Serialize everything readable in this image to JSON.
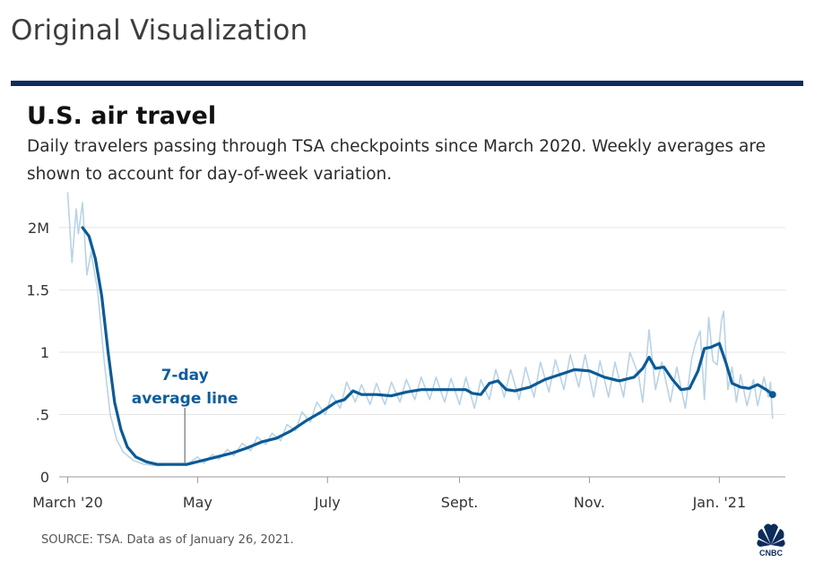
{
  "header": {
    "label": "Original Visualization"
  },
  "chart_data": {
    "type": "line",
    "title": "U.S. air travel",
    "subtitle": "Daily travelers passing through TSA checkpoints since March 2020. Weekly averages are shown to account for day-of-week variation.",
    "source": "SOURCE: TSA. Data as of January 26, 2021.",
    "logo_text": "CNBC",
    "y_ticks": [
      {
        "value": 0,
        "label": "0"
      },
      {
        "value": 0.5,
        "label": ".5"
      },
      {
        "value": 1.0,
        "label": "1"
      },
      {
        "value": 1.5,
        "label": "1.5"
      },
      {
        "value": 2.0,
        "label": "2M"
      }
    ],
    "x_ticks": [
      {
        "date": "2020-03-01",
        "label": "March '20"
      },
      {
        "date": "2020-05-01",
        "label": "May"
      },
      {
        "date": "2020-07-01",
        "label": "July"
      },
      {
        "date": "2020-09-01",
        "label": "Sept."
      },
      {
        "date": "2020-11-01",
        "label": "Nov."
      },
      {
        "date": "2021-01-01",
        "label": "Jan. '21"
      }
    ],
    "ylim": [
      0,
      2.1
    ],
    "xlim": [
      "2020-02-26",
      "2021-02-01"
    ],
    "grid": true,
    "annotation": {
      "lines": [
        "7-day",
        "average line"
      ],
      "date": "2020-04-25",
      "value": 0.1
    },
    "series": [
      {
        "style": "average",
        "color": "#0b5a96",
        "points": [
          [
            "2020-03-08",
            2.0
          ],
          [
            "2020-03-11",
            1.93
          ],
          [
            "2020-03-14",
            1.75
          ],
          [
            "2020-03-17",
            1.45
          ],
          [
            "2020-03-20",
            1.0
          ],
          [
            "2020-03-23",
            0.6
          ],
          [
            "2020-03-26",
            0.38
          ],
          [
            "2020-03-29",
            0.24
          ],
          [
            "2020-04-02",
            0.16
          ],
          [
            "2020-04-07",
            0.12
          ],
          [
            "2020-04-12",
            0.1
          ],
          [
            "2020-04-19",
            0.1
          ],
          [
            "2020-04-26",
            0.1
          ],
          [
            "2020-05-03",
            0.13
          ],
          [
            "2020-05-10",
            0.16
          ],
          [
            "2020-05-17",
            0.19
          ],
          [
            "2020-05-24",
            0.23
          ],
          [
            "2020-05-31",
            0.28
          ],
          [
            "2020-06-07",
            0.31
          ],
          [
            "2020-06-14",
            0.37
          ],
          [
            "2020-06-21",
            0.45
          ],
          [
            "2020-06-28",
            0.52
          ],
          [
            "2020-07-05",
            0.6
          ],
          [
            "2020-07-09",
            0.62
          ],
          [
            "2020-07-13",
            0.69
          ],
          [
            "2020-07-17",
            0.66
          ],
          [
            "2020-07-24",
            0.66
          ],
          [
            "2020-07-31",
            0.65
          ],
          [
            "2020-08-07",
            0.68
          ],
          [
            "2020-08-14",
            0.7
          ],
          [
            "2020-08-21",
            0.7
          ],
          [
            "2020-08-28",
            0.7
          ],
          [
            "2020-09-04",
            0.7
          ],
          [
            "2020-09-07",
            0.67
          ],
          [
            "2020-09-11",
            0.66
          ],
          [
            "2020-09-15",
            0.75
          ],
          [
            "2020-09-19",
            0.77
          ],
          [
            "2020-09-23",
            0.7
          ],
          [
            "2020-09-27",
            0.69
          ],
          [
            "2020-10-04",
            0.72
          ],
          [
            "2020-10-11",
            0.78
          ],
          [
            "2020-10-18",
            0.82
          ],
          [
            "2020-10-25",
            0.86
          ],
          [
            "2020-11-01",
            0.85
          ],
          [
            "2020-11-08",
            0.8
          ],
          [
            "2020-11-15",
            0.77
          ],
          [
            "2020-11-22",
            0.8
          ],
          [
            "2020-11-26",
            0.87
          ],
          [
            "2020-11-29",
            0.96
          ],
          [
            "2020-12-02",
            0.87
          ],
          [
            "2020-12-06",
            0.88
          ],
          [
            "2020-12-10",
            0.78
          ],
          [
            "2020-12-14",
            0.7
          ],
          [
            "2020-12-18",
            0.71
          ],
          [
            "2020-12-22",
            0.85
          ],
          [
            "2020-12-25",
            1.03
          ],
          [
            "2020-12-28",
            1.04
          ],
          [
            "2021-01-01",
            1.07
          ],
          [
            "2021-01-04",
            0.92
          ],
          [
            "2021-01-07",
            0.75
          ],
          [
            "2021-01-11",
            0.72
          ],
          [
            "2021-01-15",
            0.71
          ],
          [
            "2021-01-19",
            0.74
          ],
          [
            "2021-01-23",
            0.7
          ],
          [
            "2021-01-26",
            0.66
          ]
        ]
      },
      {
        "style": "daily",
        "color": "#b9d3e6",
        "points": [
          [
            "2020-03-01",
            2.28
          ],
          [
            "2020-03-03",
            1.72
          ],
          [
            "2020-03-05",
            2.15
          ],
          [
            "2020-03-06",
            1.95
          ],
          [
            "2020-03-08",
            2.2
          ],
          [
            "2020-03-10",
            1.62
          ],
          [
            "2020-03-12",
            1.8
          ],
          [
            "2020-03-15",
            1.5
          ],
          [
            "2020-03-18",
            0.95
          ],
          [
            "2020-03-21",
            0.5
          ],
          [
            "2020-03-24",
            0.3
          ],
          [
            "2020-03-27",
            0.2
          ],
          [
            "2020-04-01",
            0.13
          ],
          [
            "2020-04-06",
            0.1
          ],
          [
            "2020-04-12",
            0.09
          ],
          [
            "2020-04-20",
            0.1
          ],
          [
            "2020-04-27",
            0.11
          ],
          [
            "2020-05-01",
            0.16
          ],
          [
            "2020-05-04",
            0.11
          ],
          [
            "2020-05-08",
            0.18
          ],
          [
            "2020-05-11",
            0.14
          ],
          [
            "2020-05-15",
            0.22
          ],
          [
            "2020-05-18",
            0.17
          ],
          [
            "2020-05-22",
            0.27
          ],
          [
            "2020-05-26",
            0.21
          ],
          [
            "2020-05-29",
            0.32
          ],
          [
            "2020-06-02",
            0.26
          ],
          [
            "2020-06-05",
            0.35
          ],
          [
            "2020-06-09",
            0.29
          ],
          [
            "2020-06-12",
            0.42
          ],
          [
            "2020-06-16",
            0.37
          ],
          [
            "2020-06-19",
            0.52
          ],
          [
            "2020-06-23",
            0.44
          ],
          [
            "2020-06-26",
            0.6
          ],
          [
            "2020-06-30",
            0.5
          ],
          [
            "2020-07-03",
            0.66
          ],
          [
            "2020-07-07",
            0.55
          ],
          [
            "2020-07-10",
            0.76
          ],
          [
            "2020-07-14",
            0.6
          ],
          [
            "2020-07-17",
            0.74
          ],
          [
            "2020-07-21",
            0.58
          ],
          [
            "2020-07-24",
            0.75
          ],
          [
            "2020-07-28",
            0.58
          ],
          [
            "2020-07-31",
            0.76
          ],
          [
            "2020-08-04",
            0.6
          ],
          [
            "2020-08-07",
            0.78
          ],
          [
            "2020-08-11",
            0.62
          ],
          [
            "2020-08-14",
            0.8
          ],
          [
            "2020-08-18",
            0.62
          ],
          [
            "2020-08-21",
            0.8
          ],
          [
            "2020-08-25",
            0.6
          ],
          [
            "2020-08-28",
            0.79
          ],
          [
            "2020-09-01",
            0.58
          ],
          [
            "2020-09-04",
            0.8
          ],
          [
            "2020-09-08",
            0.55
          ],
          [
            "2020-09-11",
            0.78
          ],
          [
            "2020-09-15",
            0.62
          ],
          [
            "2020-09-18",
            0.86
          ],
          [
            "2020-09-22",
            0.64
          ],
          [
            "2020-09-25",
            0.86
          ],
          [
            "2020-09-29",
            0.62
          ],
          [
            "2020-10-02",
            0.88
          ],
          [
            "2020-10-06",
            0.64
          ],
          [
            "2020-10-09",
            0.92
          ],
          [
            "2020-10-13",
            0.68
          ],
          [
            "2020-10-16",
            0.94
          ],
          [
            "2020-10-20",
            0.7
          ],
          [
            "2020-10-23",
            0.98
          ],
          [
            "2020-10-27",
            0.72
          ],
          [
            "2020-10-30",
            0.98
          ],
          [
            "2020-11-03",
            0.64
          ],
          [
            "2020-11-06",
            0.93
          ],
          [
            "2020-11-10",
            0.64
          ],
          [
            "2020-11-13",
            0.92
          ],
          [
            "2020-11-17",
            0.64
          ],
          [
            "2020-11-20",
            1.0
          ],
          [
            "2020-11-24",
            0.82
          ],
          [
            "2020-11-26",
            0.6
          ],
          [
            "2020-11-29",
            1.18
          ],
          [
            "2020-12-02",
            0.7
          ],
          [
            "2020-12-05",
            0.92
          ],
          [
            "2020-12-09",
            0.6
          ],
          [
            "2020-12-12",
            0.88
          ],
          [
            "2020-12-16",
            0.55
          ],
          [
            "2020-12-19",
            0.95
          ],
          [
            "2020-12-21",
            1.08
          ],
          [
            "2020-12-23",
            1.17
          ],
          [
            "2020-12-25",
            0.62
          ],
          [
            "2020-12-27",
            1.28
          ],
          [
            "2020-12-29",
            0.93
          ],
          [
            "2020-12-31",
            0.9
          ],
          [
            "2021-01-02",
            1.25
          ],
          [
            "2021-01-03",
            1.33
          ],
          [
            "2021-01-05",
            0.7
          ],
          [
            "2021-01-07",
            0.88
          ],
          [
            "2021-01-09",
            0.6
          ],
          [
            "2021-01-11",
            0.82
          ],
          [
            "2021-01-14",
            0.57
          ],
          [
            "2021-01-17",
            0.78
          ],
          [
            "2021-01-19",
            0.57
          ],
          [
            "2021-01-22",
            0.8
          ],
          [
            "2021-01-24",
            0.64
          ],
          [
            "2021-01-25",
            0.76
          ],
          [
            "2021-01-26",
            0.47
          ]
        ]
      }
    ]
  }
}
